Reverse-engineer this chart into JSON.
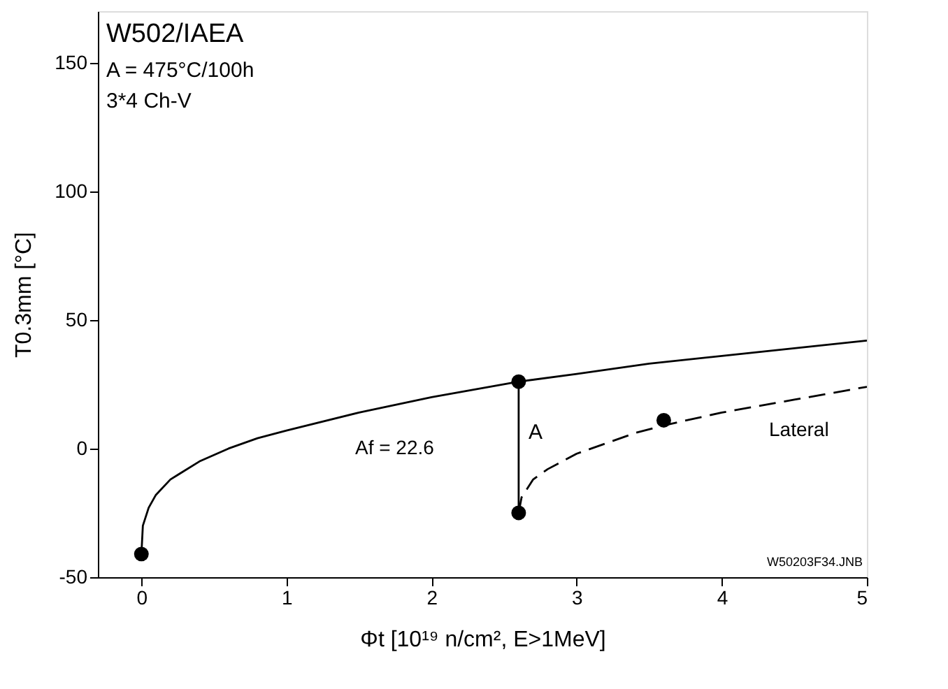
{
  "chart_data": {
    "type": "line",
    "title": "W502/IAEA",
    "xlabel": "Φt [10¹⁹ n/cm², E>1MeV]",
    "ylabel": "T0.3mm [°C]",
    "xlim": [
      -0.3,
      5
    ],
    "ylim": [
      -50,
      170
    ],
    "xticks": [
      0,
      1,
      2,
      3,
      4,
      5
    ],
    "yticks": [
      -50,
      0,
      50,
      100,
      150
    ],
    "grid": false,
    "series": [
      {
        "line_style": "solid",
        "color": "#000000",
        "x": [
          0,
          0.01,
          0.05,
          0.1,
          0.2,
          0.4,
          0.6,
          0.8,
          1,
          1.5,
          2,
          2.6,
          3,
          3.5,
          4,
          4.5,
          5
        ],
        "values": [
          -41,
          -30,
          -23,
          -18,
          -12,
          -5,
          0,
          4,
          7,
          14,
          20,
          26,
          29,
          33,
          36,
          39,
          42
        ]
      },
      {
        "line_style": "solid",
        "color": "#000000",
        "x": [
          2.6,
          2.6
        ],
        "values": [
          -25,
          26
        ]
      },
      {
        "line_style": "dashed",
        "color": "#000000",
        "x": [
          2.6,
          2.62,
          2.7,
          2.8,
          3,
          3.2,
          3.4,
          3.6,
          4,
          4.5,
          5
        ],
        "values": [
          -25,
          -19,
          -12,
          -8,
          -2,
          2,
          6,
          9,
          14,
          19,
          24
        ]
      },
      {
        "type": "scatter",
        "marker": "circle",
        "color": "#000000",
        "x": [
          0,
          2.6,
          2.6,
          3.6
        ],
        "values": [
          -41,
          26,
          -25,
          11
        ]
      }
    ],
    "annotations": [
      "A = 475°C/100h",
      "3*4 Ch-V",
      "Af = 22.6",
      "A",
      "Lateral",
      "W50203F34.JNB"
    ]
  }
}
